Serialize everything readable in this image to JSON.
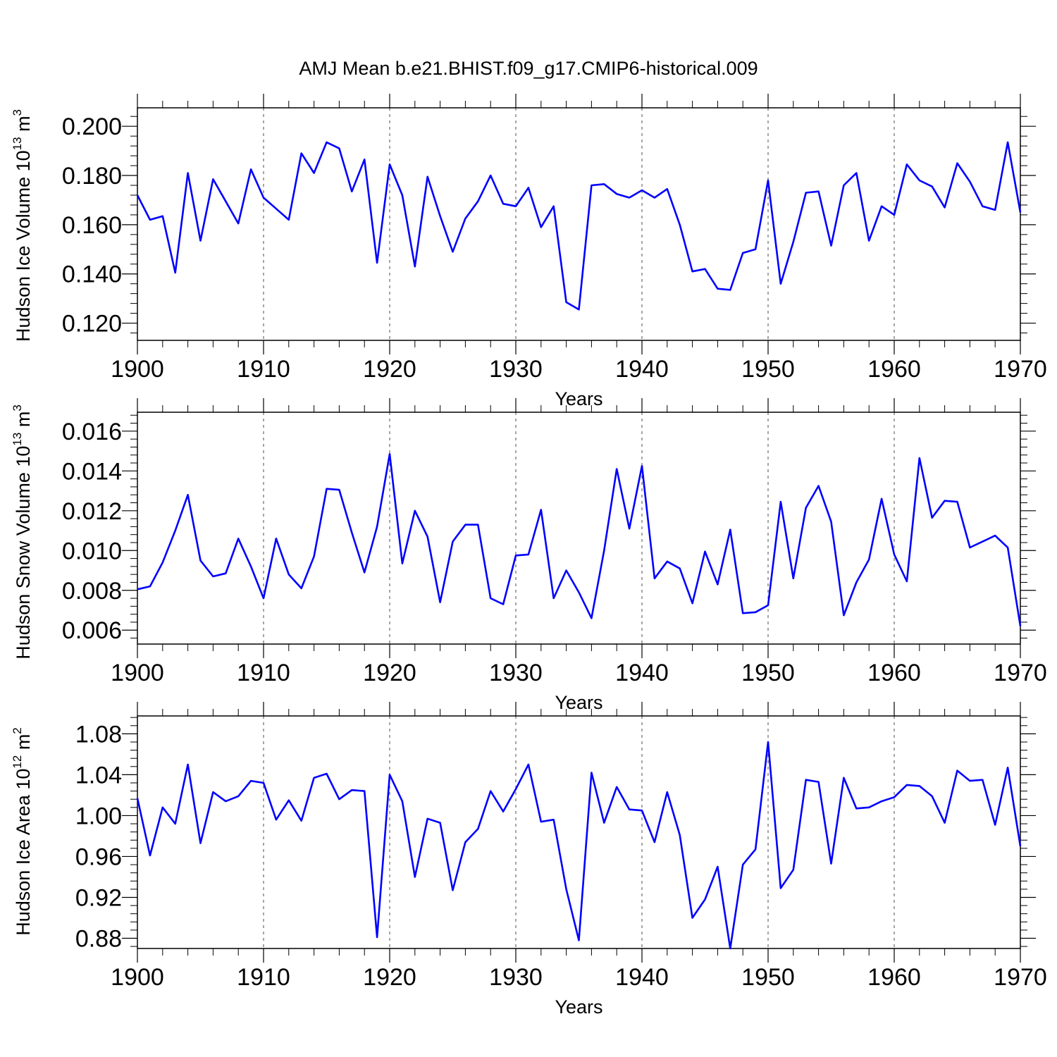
{
  "figure_title": "AMJ Mean b.e21.BHIST.f09_g17.CMIP6-historical.009",
  "colors": {
    "series": "#0000ff",
    "axis": "#000000",
    "grid": "#000000"
  },
  "chart_data": [
    {
      "type": "line",
      "ylabel_main": "Hudson Ice Volume 10",
      "ylabel_exp": "13",
      "ylabel_unit": " m",
      "ylabel_unit_exp": "3",
      "xlabel": "Years",
      "xlim": [
        1900,
        1970
      ],
      "ylim": [
        0.113,
        0.2075
      ],
      "yticks": [
        0.12,
        0.14,
        0.16,
        0.18,
        0.2
      ],
      "yticklabels": [
        "0.120",
        "0.140",
        "0.160",
        "0.180",
        "0.200"
      ],
      "xticks": [
        1900,
        1910,
        1920,
        1930,
        1940,
        1950,
        1960,
        1970
      ],
      "xticklabels": [
        "1900",
        "1910",
        "1920",
        "1930",
        "1940",
        "1950",
        "1960",
        "1970"
      ],
      "grid": "dashed vertical at decades",
      "series": [
        {
          "name": "Hudson Ice Volume",
          "x_start": 1900,
          "x_step": 1,
          "values": [
            0.172,
            0.162,
            0.1635,
            0.1405,
            0.181,
            0.1535,
            0.1785,
            0.1695,
            0.1605,
            0.1825,
            0.171,
            0.1665,
            0.162,
            0.189,
            0.181,
            0.1935,
            0.191,
            0.1735,
            0.1865,
            0.1445,
            0.1845,
            0.172,
            0.143,
            0.1795,
            0.1635,
            0.149,
            0.1625,
            0.1695,
            0.18,
            0.1685,
            0.1675,
            0.175,
            0.159,
            0.1675,
            0.1285,
            0.1255,
            0.176,
            0.1765,
            0.1725,
            0.171,
            0.174,
            0.171,
            0.1745,
            0.16,
            0.141,
            0.142,
            0.134,
            0.1335,
            0.1485,
            0.15,
            0.178,
            0.136,
            0.153,
            0.173,
            0.1735,
            0.1515,
            0.176,
            0.181,
            0.1535,
            0.1675,
            0.164,
            0.1845,
            0.178,
            0.1755,
            0.167,
            0.185,
            0.1775,
            0.1675,
            0.166,
            0.1935,
            0.165
          ]
        }
      ]
    },
    {
      "type": "line",
      "ylabel_main": "Hudson Snow Volume 10",
      "ylabel_exp": "13",
      "ylabel_unit": " m",
      "ylabel_unit_exp": "3",
      "xlabel": "Years",
      "xlim": [
        1900,
        1970
      ],
      "ylim": [
        0.0053,
        0.01695
      ],
      "yticks": [
        0.006,
        0.008,
        0.01,
        0.012,
        0.014,
        0.016
      ],
      "yticklabels": [
        "0.006",
        "0.008",
        "0.010",
        "0.012",
        "0.014",
        "0.016"
      ],
      "xticks": [
        1900,
        1910,
        1920,
        1930,
        1940,
        1950,
        1960,
        1970
      ],
      "xticklabels": [
        "1900",
        "1910",
        "1920",
        "1930",
        "1940",
        "1950",
        "1960",
        "1970"
      ],
      "grid": "dashed vertical at decades",
      "series": [
        {
          "name": "Hudson Snow Volume",
          "x_start": 1900,
          "x_step": 1,
          "values": [
            0.00805,
            0.0082,
            0.0094,
            0.011,
            0.0128,
            0.0095,
            0.0087,
            0.00885,
            0.0106,
            0.0092,
            0.0076,
            0.0106,
            0.0088,
            0.0081,
            0.0097,
            0.0131,
            0.01305,
            0.0109,
            0.0089,
            0.0112,
            0.01485,
            0.00935,
            0.012,
            0.0107,
            0.0074,
            0.01045,
            0.0113,
            0.0113,
            0.0076,
            0.0073,
            0.00975,
            0.0098,
            0.01205,
            0.0076,
            0.009,
            0.0079,
            0.0066,
            0.01,
            0.0141,
            0.0111,
            0.01425,
            0.0086,
            0.00945,
            0.0091,
            0.00735,
            0.00995,
            0.0083,
            0.01105,
            0.00685,
            0.0069,
            0.00725,
            0.01245,
            0.0086,
            0.01215,
            0.01325,
            0.01145,
            0.00675,
            0.0084,
            0.00955,
            0.0126,
            0.0098,
            0.00845,
            0.01465,
            0.01165,
            0.0125,
            0.01245,
            0.01015,
            0.01045,
            0.01075,
            0.01015,
            0.0062
          ]
        }
      ]
    },
    {
      "type": "line",
      "ylabel_main": "Hudson Ice Area 10",
      "ylabel_exp": "12",
      "ylabel_unit": " m",
      "ylabel_unit_exp": "2",
      "xlabel": "Years",
      "xlim": [
        1900,
        1970
      ],
      "ylim": [
        0.87,
        1.0975
      ],
      "yticks": [
        0.88,
        0.92,
        0.96,
        1.0,
        1.04,
        1.08
      ],
      "yticklabels": [
        "0.88",
        "0.92",
        "0.96",
        "1.00",
        "1.04",
        "1.08"
      ],
      "xticks": [
        1900,
        1910,
        1920,
        1930,
        1940,
        1950,
        1960,
        1970
      ],
      "xticklabels": [
        "1900",
        "1910",
        "1920",
        "1930",
        "1940",
        "1950",
        "1960",
        "1970"
      ],
      "grid": "dashed vertical at decades",
      "series": [
        {
          "name": "Hudson Ice Area",
          "x_start": 1900,
          "x_step": 1,
          "values": [
            1.017,
            0.961,
            1.008,
            0.992,
            1.05,
            0.973,
            1.023,
            1.014,
            1.019,
            1.034,
            1.032,
            0.996,
            1.015,
            0.995,
            1.037,
            1.041,
            1.016,
            1.025,
            1.024,
            0.881,
            1.04,
            1.014,
            0.94,
            0.997,
            0.993,
            0.927,
            0.974,
            0.987,
            1.024,
            1.004,
            1.026,
            1.05,
            0.994,
            0.996,
            0.928,
            0.878,
            1.042,
            0.993,
            1.028,
            1.006,
            1.005,
            0.974,
            1.023,
            0.981,
            0.9,
            0.918,
            0.95,
            0.87,
            0.952,
            0.967,
            1.072,
            0.929,
            0.947,
            1.035,
            1.033,
            0.953,
            1.037,
            1.007,
            1.008,
            1.014,
            1.018,
            1.03,
            1.029,
            1.019,
            0.993,
            1.044,
            1.034,
            1.035,
            0.991,
            1.047,
            0.97
          ]
        }
      ]
    }
  ]
}
